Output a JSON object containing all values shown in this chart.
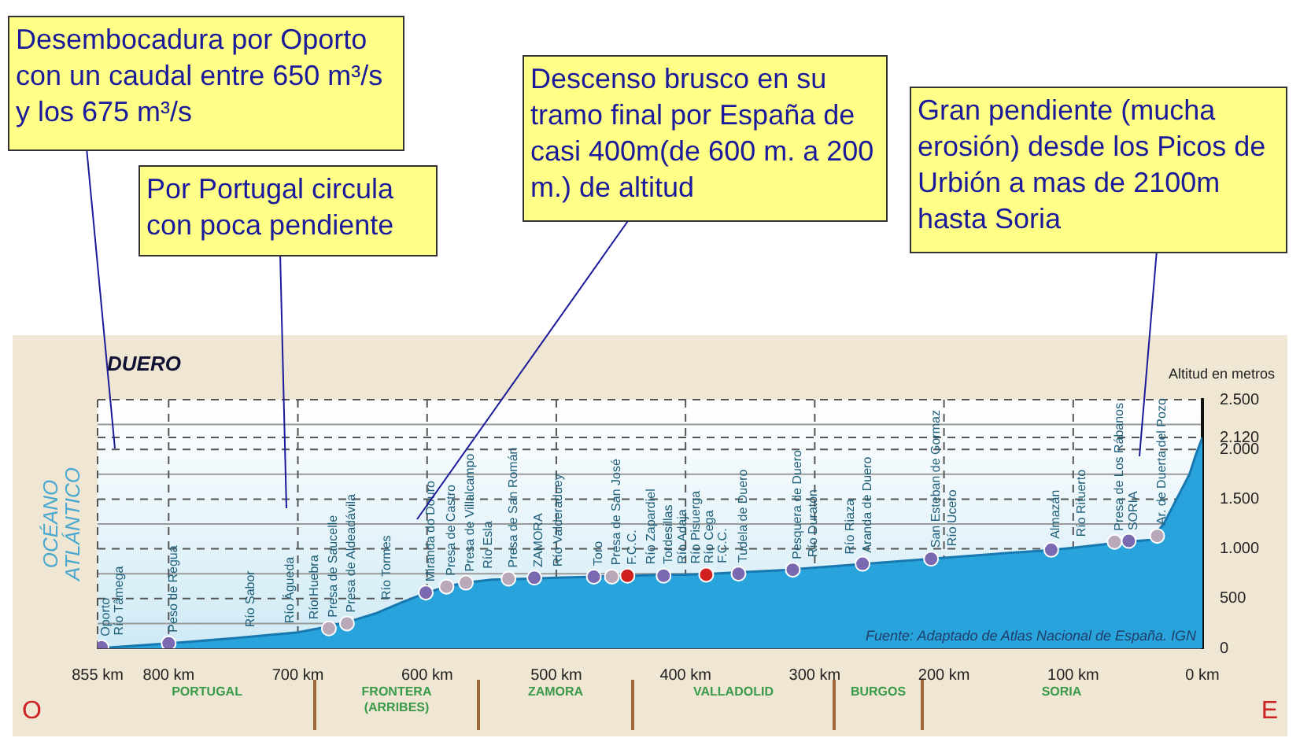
{
  "chart_data": {
    "type": "area",
    "title": "DUERO",
    "ylabel": "Altitud en metros",
    "xlim": [
      855,
      0
    ],
    "xticks": [
      {
        "value": 855,
        "label": "855 km"
      },
      {
        "value": 800,
        "label": "800 km"
      },
      {
        "value": 700,
        "label": "700 km"
      },
      {
        "value": 600,
        "label": "600 km"
      },
      {
        "value": 500,
        "label": "500 km"
      },
      {
        "value": 400,
        "label": "400 km"
      },
      {
        "value": 300,
        "label": "300 km"
      },
      {
        "value": 200,
        "label": "200 km"
      },
      {
        "value": 100,
        "label": "100 km"
      },
      {
        "value": 0,
        "label": "0 km"
      }
    ],
    "ylim": [
      0,
      2500
    ],
    "yticks": [
      {
        "value": 0,
        "label": "0"
      },
      {
        "value": 250,
        "label": null
      },
      {
        "value": 500,
        "label": "500"
      },
      {
        "value": 750,
        "label": null
      },
      {
        "value": 1000,
        "label": "1.000"
      },
      {
        "value": 1250,
        "label": null
      },
      {
        "value": 1500,
        "label": "1.500"
      },
      {
        "value": 1750,
        "label": null
      },
      {
        "value": 2000,
        "label": "2.000"
      },
      {
        "value": 2120,
        "label": "2.120"
      },
      {
        "value": 2250,
        "label": null
      },
      {
        "value": 2500,
        "label": "2.500"
      }
    ],
    "grid": true,
    "series": [
      {
        "color": "#29a3dc",
        "x": [
          855,
          800,
          750,
          700,
          680,
          660,
          640,
          620,
          600,
          585,
          570,
          550,
          520,
          500,
          470,
          440,
          420,
          400,
          380,
          350,
          320,
          300,
          270,
          250,
          220,
          200,
          150,
          120,
          100,
          80,
          60,
          40,
          30,
          20,
          10,
          5,
          0
        ],
        "values": [
          0,
          50,
          100,
          160,
          210,
          270,
          350,
          460,
          560,
          620,
          660,
          690,
          700,
          710,
          720,
          730,
          740,
          740,
          750,
          770,
          790,
          810,
          840,
          860,
          890,
          910,
          960,
          985,
          1010,
          1040,
          1070,
          1090,
          1250,
          1500,
          1750,
          1950,
          2120
        ]
      },
      {
        "type": "scatter",
        "marker": "circle",
        "x": [
          852,
          800,
          676,
          662,
          601,
          585,
          570,
          537,
          517,
          471,
          457,
          445,
          417,
          384,
          359,
          317,
          263,
          210,
          117,
          68,
          57,
          35
        ],
        "values": [
          10,
          50,
          200,
          250,
          560,
          620,
          660,
          700,
          710,
          720,
          720,
          730,
          730,
          740,
          750,
          790,
          850,
          900,
          990,
          1070,
          1080,
          1130
        ],
        "colors": [
          "#7a68b0",
          "#7a68b0",
          "#b8a8b8",
          "#b8a8b8",
          "#7a68b0",
          "#b8a8b8",
          "#b8a8b8",
          "#b8a8b8",
          "#7a68b0",
          "#7a68b0",
          "#b8a8b8",
          "#d02020",
          "#7a68b0",
          "#d02020",
          "#7a68b0",
          "#7a68b0",
          "#7a68b0",
          "#7a68b0",
          "#7a68b0",
          "#b8a8b8",
          "#7a68b0",
          "#b8a8b8"
        ]
      }
    ],
    "annotations": [
      "PORTUGAL",
      "FRONTERA (ARRIBES)",
      "ZAMORA",
      "VALLADOLID",
      "BURGOS",
      "SORIA",
      "Desembocadura por Oporto con un caudal entre 650 m³/s y los 675 m³/s",
      "Por Portugal circula con poca pendiente",
      "Descenso brusco en su tramo final por España de casi 400m(de 600 m. a 200 m.) de altitud",
      "Gran pendiente (mucha erosión) desde los Picos de Urbión a mas de 2100m hasta Soria",
      "OCÉANO ATLÁNTICO",
      "O",
      "E",
      "Fuente: Adaptado de Atlas Nacional de España. IGN",
      {
        "text": "Oporto",
        "x": 852,
        "y": 10
      },
      {
        "text": "Río Tâmega",
        "x": 843,
        "y": 20
      },
      {
        "text": "Peso de Régua",
        "x": 800,
        "y": 50
      },
      {
        "text": "Río Sabor",
        "x": 740,
        "y": 100
      },
      {
        "text": "Río Águeda",
        "x": 710,
        "y": 140
      },
      {
        "text": "Río Huebra",
        "x": 691,
        "y": 180
      },
      {
        "text": "Presa de Saucelle",
        "x": 676,
        "y": 200
      },
      {
        "text": "Presa de Aldeadávila",
        "x": 662,
        "y": 250
      },
      {
        "text": "Río Tormes",
        "x": 635,
        "y": 380
      },
      {
        "text": "Miranda do Douro",
        "x": 601,
        "y": 560
      },
      {
        "text": "Presa de Castro",
        "x": 585,
        "y": 620
      },
      {
        "text": "Presa de Villalcampo",
        "x": 570,
        "y": 660
      },
      {
        "text": "Río Esla",
        "x": 556,
        "y": 690
      },
      {
        "text": "Presa de San Román",
        "x": 537,
        "y": 700
      },
      {
        "text": "ZAMORA",
        "x": 517,
        "y": 705
      },
      {
        "text": "Río Valderaduey",
        "x": 502,
        "y": 710
      },
      {
        "text": "Toro",
        "x": 471,
        "y": 720
      },
      {
        "text": "Presa de San José",
        "x": 457,
        "y": 725
      },
      {
        "text": "F.C.C.",
        "x": 445,
        "y": 730
      },
      {
        "text": "Río Zapardiel",
        "x": 430,
        "y": 733
      },
      {
        "text": "Tordesillas",
        "x": 417,
        "y": 735
      },
      {
        "text": "Río Adaja",
        "x": 406,
        "y": 738
      },
      {
        "text": "Río Pisuerga",
        "x": 400,
        "y": 740
      },
      {
        "text": "Río Cega",
        "x": 393,
        "y": 742
      },
      {
        "text": "F.C.C.",
        "x": 384,
        "y": 745
      },
      {
        "text": "Tudela de Duero",
        "x": 359,
        "y": 750
      },
      {
        "text": "Pesquera de Duero",
        "x": 317,
        "y": 785
      },
      {
        "text": "Río Duratón",
        "x": 305,
        "y": 805
      },
      {
        "text": "Río Riaza",
        "x": 276,
        "y": 835
      },
      {
        "text": "Aranda de Duero",
        "x": 263,
        "y": 850
      },
      {
        "text": "San Esteban de Gormaz",
        "x": 210,
        "y": 900
      },
      {
        "text": "Río Ucero",
        "x": 197,
        "y": 915
      },
      {
        "text": "Almazán",
        "x": 117,
        "y": 990
      },
      {
        "text": "Río Rituerto",
        "x": 97,
        "y": 1010
      },
      {
        "text": "Presa de Los Rábanos",
        "x": 68,
        "y": 1070
      },
      {
        "text": "SORIA",
        "x": 57,
        "y": 1075
      },
      {
        "text": "Ar. de Duerta del Pozo",
        "x": 35,
        "y": 1130
      }
    ]
  }
}
